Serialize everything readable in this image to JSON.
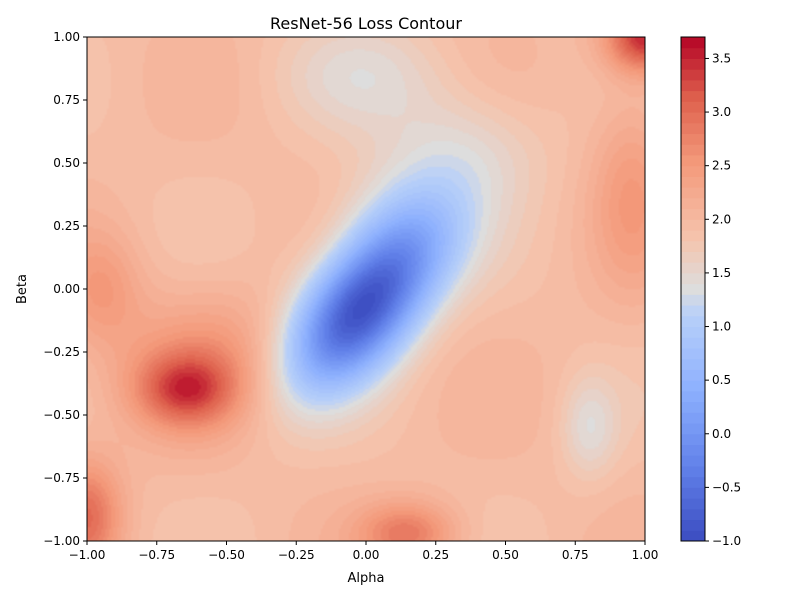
{
  "chart_data": {
    "type": "contour",
    "title": "ResNet-56 Loss Contour",
    "xlabel": "Alpha",
    "ylabel": "Beta",
    "xlim": [
      -1.0,
      1.0
    ],
    "ylim": [
      -1.0,
      1.0
    ],
    "x_ticks": [
      "−1.00",
      "−0.75",
      "−0.50",
      "−0.25",
      "0.00",
      "0.25",
      "0.50",
      "0.75",
      "1.00"
    ],
    "y_ticks": [
      "−1.00",
      "−0.75",
      "−0.50",
      "−0.25",
      "0.00",
      "0.25",
      "0.50",
      "0.75",
      "1.00"
    ],
    "colorbar": {
      "range": [
        -1.0,
        3.7
      ],
      "ticks": [
        -1.0,
        -0.5,
        0.0,
        0.5,
        1.0,
        1.5,
        2.0,
        2.5,
        3.0,
        3.5
      ],
      "tick_labels": [
        "−1.0",
        "−0.5",
        "0.0",
        "0.5",
        "1.0",
        "1.5",
        "2.0",
        "2.5",
        "3.0",
        "3.5"
      ],
      "colormap": "coolwarm",
      "levels": 47
    },
    "grid": false,
    "minimum": {
      "alpha": -0.02,
      "beta": -0.08,
      "loss": -0.9
    },
    "features": [
      {
        "alpha": -0.02,
        "beta": -0.08,
        "loss": -0.9,
        "kind": "global minimum basin"
      },
      {
        "alpha": -0.65,
        "beta": -0.4,
        "loss": 3.1,
        "kind": "local maximum"
      },
      {
        "alpha": 0.15,
        "beta": -0.95,
        "loss": 3.0,
        "kind": "local maximum"
      },
      {
        "alpha": 0.97,
        "beta": 0.95,
        "loss": 3.6,
        "kind": "corner maximum"
      },
      {
        "alpha": -0.97,
        "beta": -0.9,
        "loss": 3.1,
        "kind": "corner maximum"
      },
      {
        "alpha": 0.8,
        "beta": -0.6,
        "loss": 1.6,
        "kind": "saddle region"
      }
    ]
  }
}
